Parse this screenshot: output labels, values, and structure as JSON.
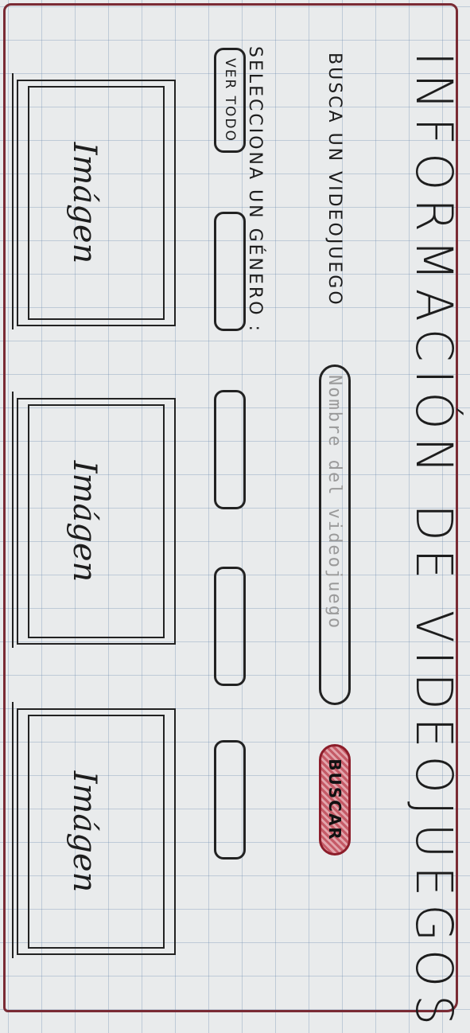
{
  "header": {
    "title": "INFORMACIÓN DE VIDEOJUEGOS"
  },
  "search": {
    "label": "BUSCA UN VIDEOJUEGO",
    "placeholder": "Nombre del videojuego",
    "button_label": "BUSCAR"
  },
  "genres": {
    "label": "SELECCIONA UN GÉNERO :",
    "buttons": [
      {
        "label": "VER TODO"
      },
      {
        "label": ""
      },
      {
        "label": ""
      },
      {
        "label": ""
      },
      {
        "label": ""
      }
    ]
  },
  "results": {
    "cards": [
      {
        "label": "Imágen"
      },
      {
        "label": "Imágen"
      },
      {
        "label": "Imágen"
      }
    ]
  },
  "colors": {
    "border": "#7a2b34",
    "button_fill": "#c55a66",
    "ink": "#1d1d1d"
  }
}
